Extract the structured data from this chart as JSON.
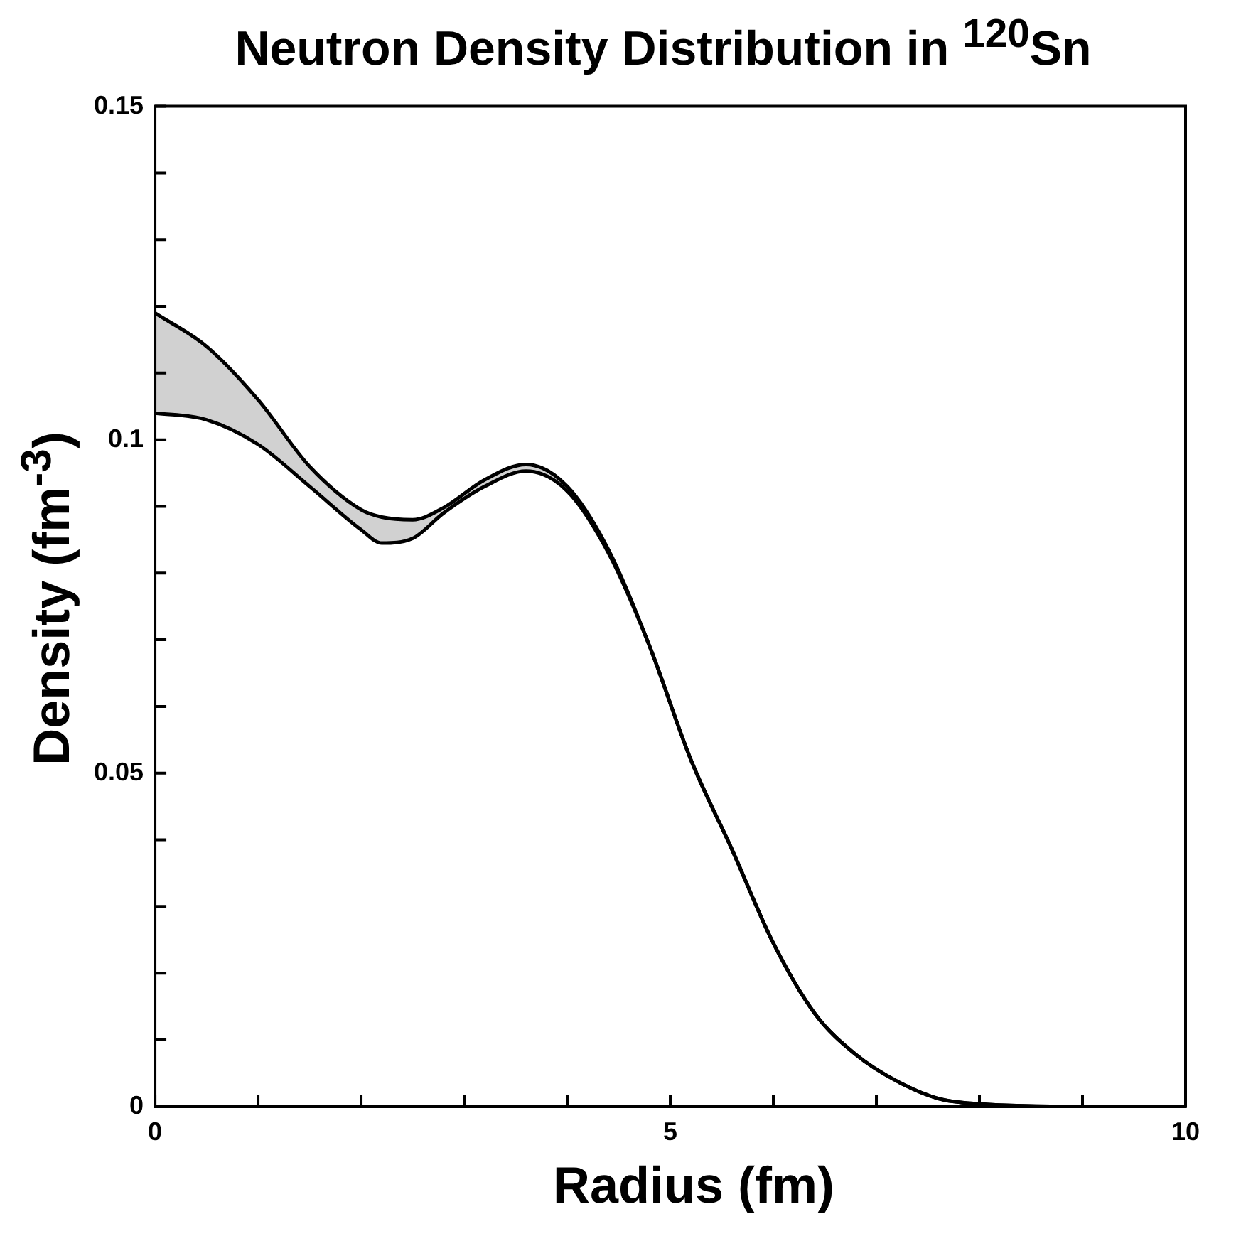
{
  "chart_data": {
    "type": "line",
    "title": "Neutron Density Distribution in $^{120}$Sn",
    "xlabel": "Radius (fm)",
    "ylabel": "Density (fm$^{-3}$)",
    "xlim": [
      0,
      10
    ],
    "xticks": [
      0,
      {
        "value": 1,
        "label": null
      },
      {
        "value": 2,
        "label": null
      },
      {
        "value": 3,
        "label": null
      },
      {
        "value": 4,
        "label": null
      },
      5,
      {
        "value": 6,
        "label": null
      },
      {
        "value": 7,
        "label": null
      },
      {
        "value": 8,
        "label": null
      },
      {
        "value": 9,
        "label": null
      },
      10
    ],
    "ylim": [
      0,
      0.15
    ],
    "yticks": [
      0,
      {
        "value": 0.01,
        "label": null
      },
      {
        "value": 0.02,
        "label": null
      },
      {
        "value": 0.03,
        "label": null
      },
      {
        "value": 0.04,
        "label": null
      },
      0.05,
      {
        "value": 0.06,
        "label": null
      },
      {
        "value": 0.07,
        "label": null
      },
      {
        "value": 0.08,
        "label": null
      },
      {
        "value": 0.09,
        "label": null
      },
      0.1,
      {
        "value": 0.11,
        "label": null
      },
      {
        "value": 0.12,
        "label": null
      },
      {
        "value": 0.13,
        "label": null
      },
      {
        "value": 0.14,
        "label": null
      },
      0.15
    ],
    "grid": false,
    "legend": false,
    "marker": "none",
    "line_style": "solid",
    "series": [
      {
        "color": "#000000",
        "x": [
          0,
          0.5,
          1,
          1.5,
          2,
          2.2,
          2.5,
          2.8,
          3.2,
          3.6,
          4,
          4.4,
          4.8,
          5.2,
          5.6,
          6,
          6.4,
          6.8,
          7.2,
          7.6,
          8,
          9,
          10
        ],
        "values": [
          0.119,
          0.114,
          0.106,
          0.096,
          0.0895,
          0.0884,
          0.088,
          0.0898,
          0.094,
          0.0963,
          0.093,
          0.0835,
          0.069,
          0.052,
          0.0385,
          0.0245,
          0.014,
          0.0078,
          0.0038,
          0.0012,
          0.0004,
          0,
          0
        ],
        "upper": [
          0.119,
          0.114,
          0.106,
          0.096,
          0.0895,
          0.0884,
          0.088,
          0.0898,
          0.094,
          0.0963,
          0.093,
          0.0835,
          0.069,
          0.052,
          0.0385,
          0.0245,
          0.014,
          0.0078,
          0.0038,
          0.0012,
          0.0004,
          0,
          0
        ],
        "lower": [
          0.104,
          0.103,
          0.0993,
          0.093,
          0.0865,
          0.0845,
          0.0852,
          0.089,
          0.093,
          0.0953,
          0.0923,
          0.083,
          0.069,
          0.052,
          0.0385,
          0.0245,
          0.014,
          0.0078,
          0.0038,
          0.0012,
          0.0004,
          0,
          0
        ]
      },
      {
        "color": "#000000",
        "x": [
          0,
          0.5,
          1,
          1.5,
          2,
          2.2,
          2.5,
          2.8,
          3.2,
          3.6,
          4,
          4.4,
          4.8,
          5.2,
          5.6,
          6,
          6.4,
          6.8,
          7.2,
          7.6,
          8,
          9,
          10
        ],
        "values": [
          0.104,
          0.103,
          0.0993,
          0.093,
          0.0865,
          0.0845,
          0.0852,
          0.089,
          0.093,
          0.0953,
          0.0923,
          0.083,
          0.069,
          0.052,
          0.0385,
          0.0245,
          0.014,
          0.0078,
          0.0038,
          0.0012,
          0.0004,
          0,
          0
        ]
      }
    ]
  }
}
